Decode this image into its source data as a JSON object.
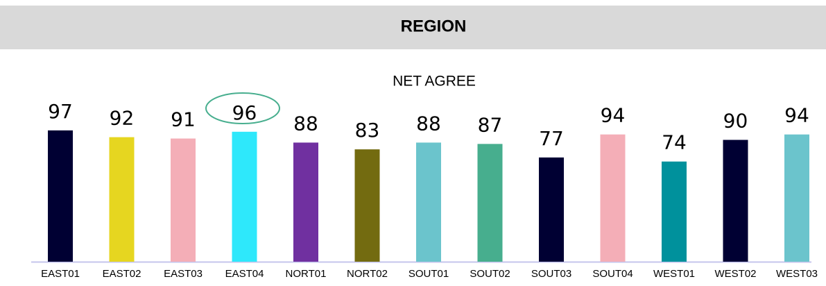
{
  "chart_data": {
    "type": "bar",
    "title": "REGION",
    "subtitle": "NET AGREE",
    "categories": [
      "EAST01",
      "EAST02",
      "EAST03",
      "EAST04",
      "NORT01",
      "NORT02",
      "SOUT01",
      "SOUT02",
      "SOUT03",
      "SOUT04",
      "WEST01",
      "WEST02",
      "WEST03"
    ],
    "values": [
      97,
      92,
      91,
      96,
      88,
      83,
      88,
      87,
      77,
      94,
      74,
      90,
      94
    ],
    "colors": [
      "#000033",
      "#e6d620",
      "#f4aeb7",
      "#2ee8fb",
      "#7030a0",
      "#736b10",
      "#6bc4cc",
      "#47ae8e",
      "#000033",
      "#f4aeb7",
      "#00919c",
      "#000033",
      "#6bc4cc"
    ],
    "ylim": [
      0,
      100
    ],
    "grid": false
  }
}
